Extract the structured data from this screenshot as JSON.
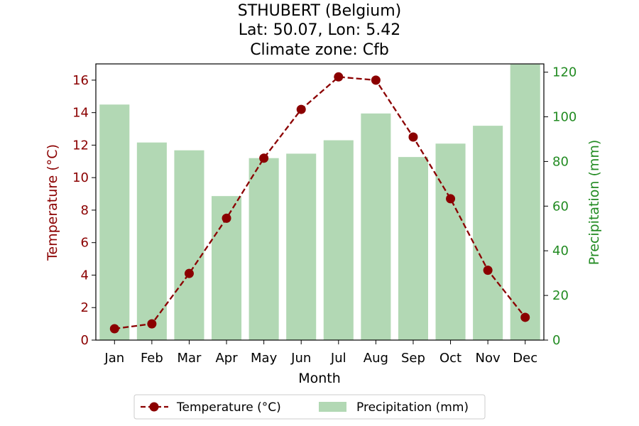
{
  "chart_data": {
    "type": "bar+line",
    "title_lines": [
      "STHUBERT (Belgium)",
      "Lat: 50.07, Lon: 5.42",
      "Climate zone: Cfb"
    ],
    "xlabel": "Month",
    "ylabel_left": "Temperature (°C)",
    "ylabel_right": "Precipitation (mm)",
    "categories": [
      "Jan",
      "Feb",
      "Mar",
      "Apr",
      "May",
      "Jun",
      "Jul",
      "Aug",
      "Sep",
      "Oct",
      "Nov",
      "Dec"
    ],
    "temperature": {
      "name": "Temperature (°C)",
      "values": [
        0.7,
        1.0,
        4.1,
        7.5,
        11.2,
        14.2,
        16.2,
        16.0,
        12.5,
        8.7,
        4.3,
        1.4
      ],
      "ylim": [
        0,
        17
      ],
      "ticks": [
        0,
        2,
        4,
        6,
        8,
        10,
        12,
        14,
        16
      ]
    },
    "precipitation": {
      "name": "Precipitation (mm)",
      "values": [
        105.5,
        88.5,
        85,
        64.5,
        81.5,
        83.5,
        89.5,
        101.5,
        82,
        88,
        96,
        123.5
      ],
      "ylim": [
        0,
        123.7
      ],
      "ticks": [
        0,
        20,
        40,
        60,
        80,
        100,
        120
      ]
    },
    "colors": {
      "temperature": "#8b0000",
      "temperature_axis": "#8b0000",
      "precipitation": "#b2d8b4",
      "precipitation_axis": "#228b22"
    },
    "legend_placement": "bottom-center",
    "grid": false
  }
}
